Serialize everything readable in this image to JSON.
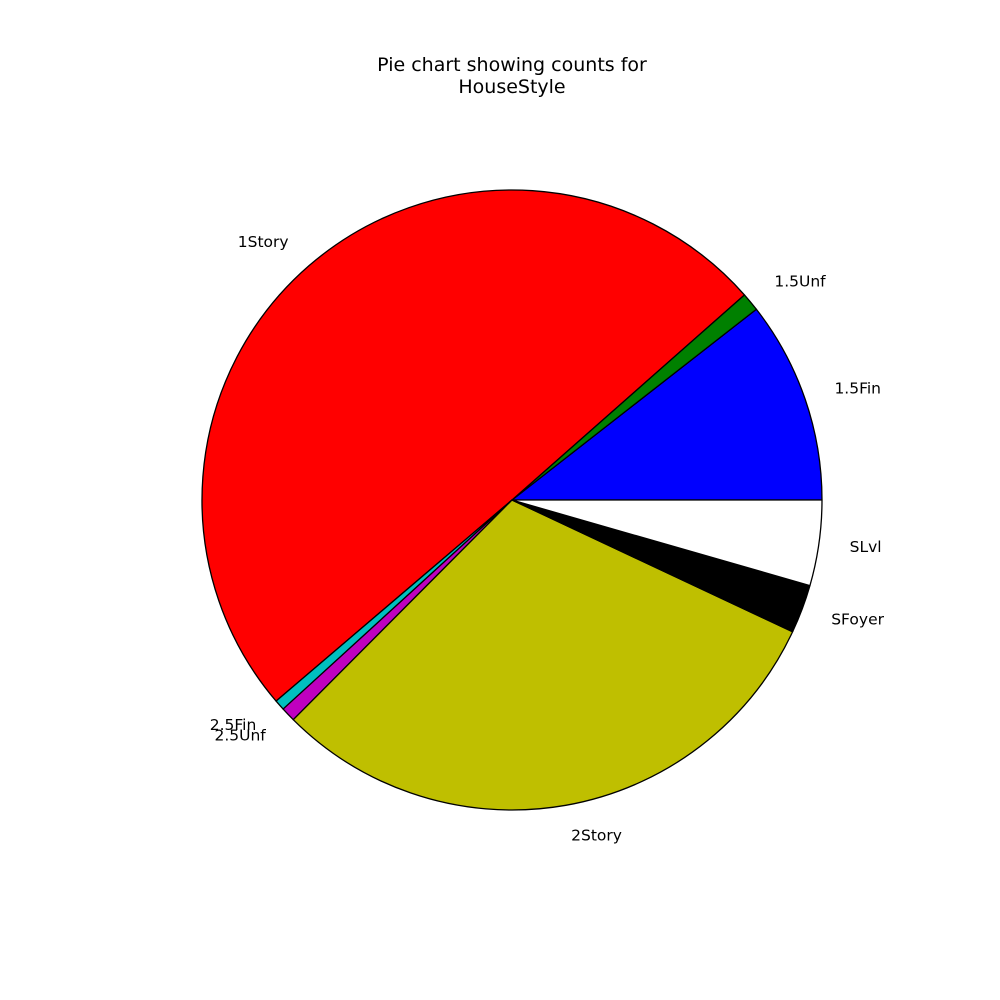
{
  "chart_data": {
    "type": "pie",
    "title": [
      "Pie chart showing counts for",
      "HouseStyle"
    ],
    "start_angle_deg": 0,
    "direction": "counterclockwise",
    "slices": [
      {
        "label": "1.5Fin",
        "value": 154,
        "color": "#0000ff"
      },
      {
        "label": "1.5Unf",
        "value": 14,
        "color": "#008000"
      },
      {
        "label": "1Story",
        "value": 726,
        "color": "#ff0000"
      },
      {
        "label": "2.5Fin",
        "value": 8,
        "color": "#00bfbf"
      },
      {
        "label": "2.5Unf",
        "value": 11,
        "color": "#bf00bf"
      },
      {
        "label": "2Story",
        "value": 445,
        "color": "#bfbf00"
      },
      {
        "label": "SFoyer",
        "value": 37,
        "color": "#000000"
      },
      {
        "label": "SLvl",
        "value": 65,
        "color": "#ffffff"
      }
    ]
  }
}
